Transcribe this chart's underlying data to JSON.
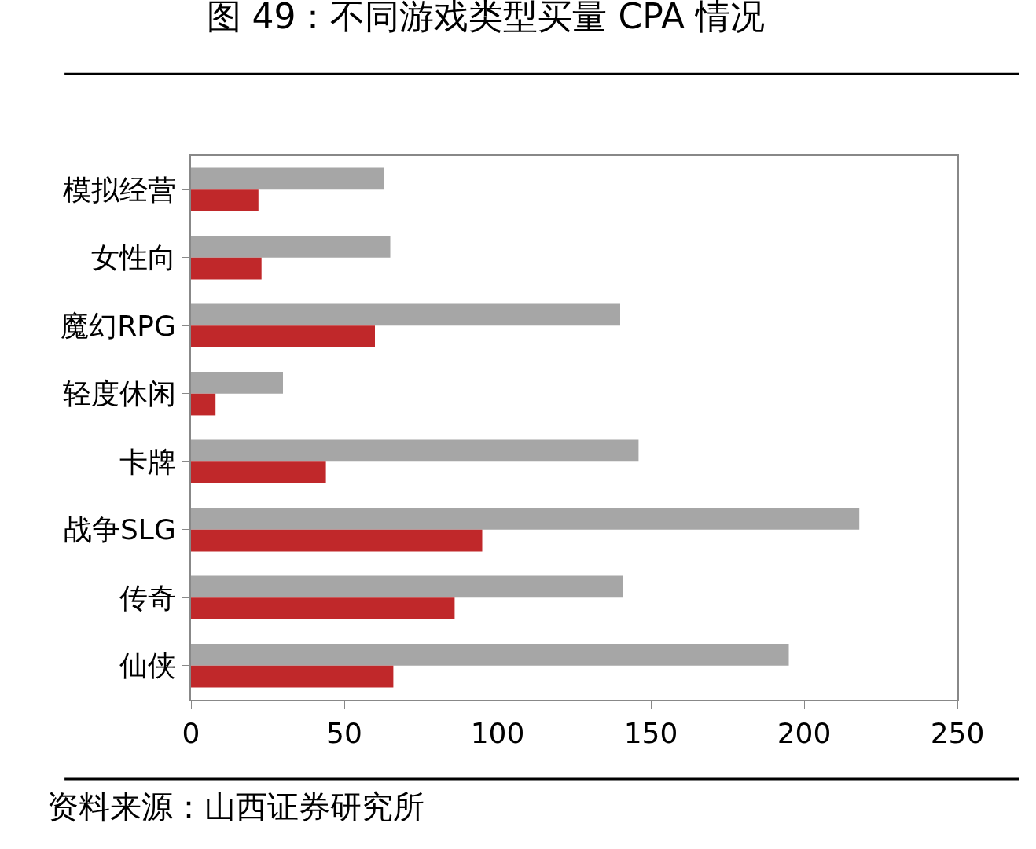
{
  "chart_data": {
    "type": "bar",
    "orientation": "horizontal",
    "title": "图 49：不同游戏类型买量 CPA 情况",
    "categories": [
      "模拟经营",
      "女性向",
      "魔幻RPG",
      "轻度休闲",
      "卡牌",
      "战争SLG",
      "传奇",
      "仙侠"
    ],
    "series": [
      {
        "color": "#a6a6a6",
        "values": [
          63,
          65,
          140,
          30,
          146,
          218,
          141,
          195
        ]
      },
      {
        "color": "#c0282a",
        "values": [
          22,
          23,
          60,
          8,
          44,
          95,
          86,
          66
        ]
      }
    ],
    "xlim": [
      0,
      250
    ],
    "xticks": [
      0,
      50,
      100,
      150,
      200,
      250
    ],
    "annotations": [
      "资料来源：山西证券研究所"
    ]
  }
}
